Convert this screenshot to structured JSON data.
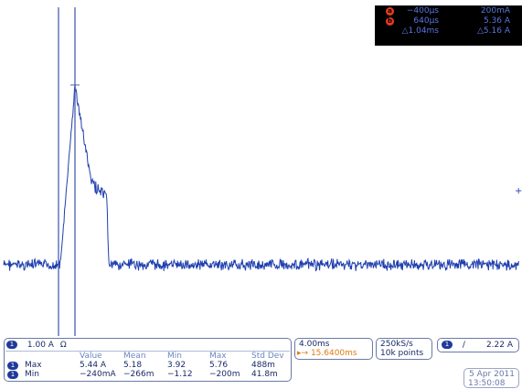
{
  "cursors": {
    "a": {
      "badge": "a",
      "time": "−400µs",
      "value": "200mA"
    },
    "b": {
      "badge": "b",
      "time": "640µs",
      "value": "5.36 A"
    },
    "delta": {
      "time": "△1.04ms",
      "value": "△5.16 A"
    }
  },
  "channel": {
    "badge": "1",
    "scale": "1.00 A",
    "unit_icon": "Ω"
  },
  "measurements": {
    "headers": [
      "Value",
      "Mean",
      "Min",
      "Max",
      "Std Dev"
    ],
    "rows": [
      {
        "badge": "1",
        "label": "Max",
        "cells": [
          "5.44 A",
          "5.18",
          "3.92",
          "5.76",
          "488m"
        ]
      },
      {
        "badge": "1",
        "label": "Min",
        "cells": [
          "−240mA",
          "−266m",
          "−1.12",
          "−200m",
          "41.8m"
        ]
      }
    ]
  },
  "timebase": {
    "scale": "4.00ms",
    "position_icon": "▸→",
    "position": "15.6400ms"
  },
  "acquisition": {
    "rate": "250kS/s",
    "points": "10k points"
  },
  "trigger": {
    "badge": "1",
    "slope_icon": "/",
    "level": "2.22 A"
  },
  "datetime": {
    "date": "5 Apr 2011",
    "time": "13:50:08"
  },
  "colors": {
    "trace": "#1f3fae",
    "cursor_line": "#4a5fb0",
    "cursor_bg": "#000000",
    "cursor_text": "#5a76e0",
    "cursor_badge": "#e83a1e",
    "orange": "#e07c10"
  }
}
